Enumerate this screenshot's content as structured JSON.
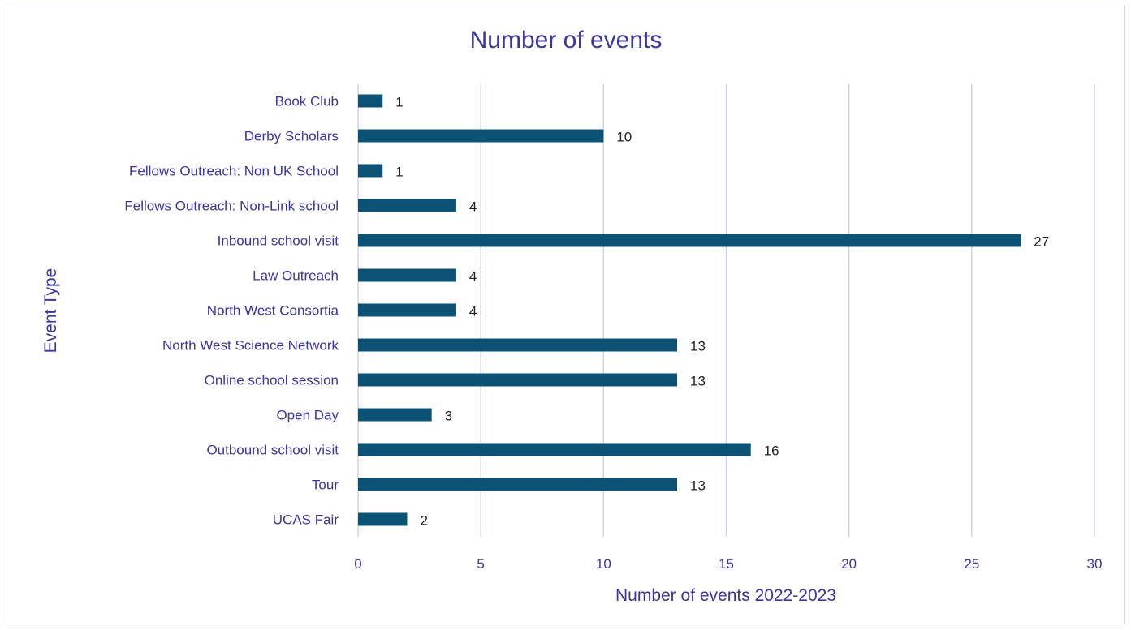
{
  "chart_data": {
    "type": "bar",
    "orientation": "horizontal",
    "title": "Number of events",
    "xlabel": "Number of events 2022-2023",
    "ylabel": "Event Type",
    "xlim": [
      0,
      30
    ],
    "xticks": [
      0,
      5,
      10,
      15,
      20,
      25,
      30
    ],
    "grid": true,
    "legend": "none",
    "bar_color": "#0c5275",
    "text_color": "#3b35a0",
    "categories": [
      "Book Club",
      "Derby Scholars",
      "Fellows Outreach: Non UK School",
      "Fellows Outreach: Non-Link school",
      "Inbound school visit",
      "Law Outreach",
      "North West Consortia",
      "North West Science Network",
      "Online school session",
      "Open Day",
      "Outbound school visit",
      "Tour",
      "UCAS Fair"
    ],
    "values": [
      1,
      10,
      1,
      4,
      27,
      4,
      4,
      13,
      13,
      3,
      16,
      13,
      2
    ]
  }
}
